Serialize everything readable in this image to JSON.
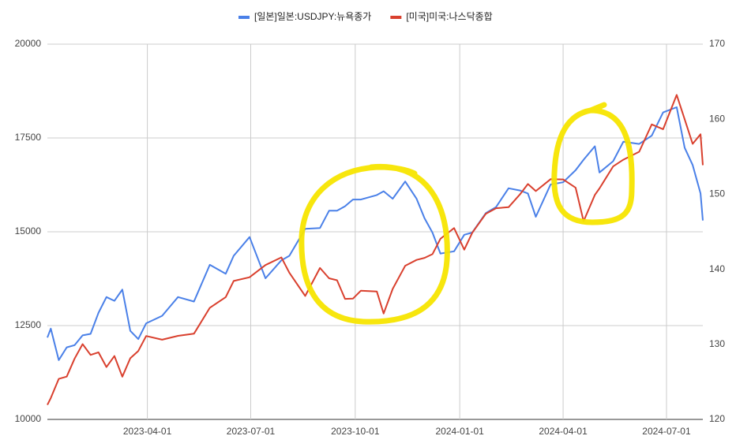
{
  "chart_data": {
    "type": "line",
    "x": [
      "2023-01-03",
      "2023-01-06",
      "2023-01-13",
      "2023-01-20",
      "2023-01-27",
      "2023-02-03",
      "2023-02-10",
      "2023-02-17",
      "2023-02-24",
      "2023-03-03",
      "2023-03-10",
      "2023-03-17",
      "2023-03-24",
      "2023-03-31",
      "2023-04-14",
      "2023-04-28",
      "2023-05-12",
      "2023-05-26",
      "2023-06-09",
      "2023-06-16",
      "2023-06-30",
      "2023-07-14",
      "2023-07-28",
      "2023-08-04",
      "2023-08-18",
      "2023-08-31",
      "2023-09-08",
      "2023-09-15",
      "2023-09-22",
      "2023-09-29",
      "2023-10-06",
      "2023-10-20",
      "2023-10-26",
      "2023-11-03",
      "2023-11-14",
      "2023-11-24",
      "2023-12-01",
      "2023-12-08",
      "2023-12-15",
      "2023-12-27",
      "2024-01-05",
      "2024-01-12",
      "2024-01-24",
      "2024-02-02",
      "2024-02-13",
      "2024-02-23",
      "2024-03-01",
      "2024-03-08",
      "2024-03-21",
      "2024-04-01",
      "2024-04-12",
      "2024-04-19",
      "2024-04-29",
      "2024-05-03",
      "2024-05-15",
      "2024-05-24",
      "2024-06-07",
      "2024-06-18",
      "2024-06-28",
      "2024-07-10",
      "2024-07-17",
      "2024-07-24",
      "2024-07-31",
      "2024-08-02"
    ],
    "series": [
      {
        "name": "[일본]일본:USDJPY:뉴욕종가",
        "color": "#4a80e8",
        "axis": "y2",
        "values": [
          130.9,
          132.1,
          127.9,
          129.6,
          129.9,
          131.2,
          131.4,
          134.2,
          136.3,
          135.8,
          137.3,
          131.8,
          130.7,
          132.8,
          133.8,
          136.3,
          135.7,
          140.6,
          139.4,
          141.8,
          144.3,
          138.8,
          141.2,
          141.8,
          145.4,
          145.5,
          147.8,
          147.8,
          148.4,
          149.3,
          149.3,
          149.9,
          150.4,
          149.4,
          151.7,
          149.4,
          146.8,
          144.9,
          142.1,
          142.4,
          144.6,
          144.9,
          147.5,
          148.3,
          150.8,
          150.5,
          150.1,
          147.0,
          151.3,
          151.6,
          153.2,
          154.6,
          156.4,
          152.9,
          154.4,
          157.0,
          156.7,
          157.8,
          160.9,
          161.6,
          156.2,
          153.9,
          150.1,
          146.5
        ]
      },
      {
        "name": "[미국]미국:나스닥종합",
        "color": "#d9402e",
        "values": [
          10386,
          10569,
          11079,
          11140,
          11621,
          12007,
          11718,
          11787,
          11395,
          11689,
          11138,
          11631,
          11823,
          12222,
          12123,
          12227,
          12284,
          12975,
          13259,
          13689,
          13787,
          14113,
          14317,
          13909,
          13290,
          14035,
          13761,
          13708,
          13212,
          13219,
          13431,
          13407,
          12821,
          13478,
          14094,
          14250,
          14305,
          14403,
          14813,
          15099,
          14524,
          14972,
          15481,
          15628,
          15655,
          15996,
          16274,
          16085,
          16401,
          16396,
          16175,
          15282,
          15983,
          16156,
          16742,
          16920,
          17133,
          17862,
          17733,
          18647,
          17997,
          17342,
          17599,
          16776
        ]
      }
    ],
    "xlim": [
      "2023-01-03",
      "2024-08-02"
    ],
    "xticks": [
      "2023-04-01",
      "2023-07-01",
      "2023-10-01",
      "2024-01-01",
      "2024-04-01",
      "2024-07-01"
    ],
    "ylim": [
      10000,
      20000
    ],
    "yticks": [
      10000,
      12500,
      15000,
      17500,
      20000
    ],
    "y2lim": [
      120,
      170
    ],
    "y2ticks": [
      120,
      130,
      140,
      150,
      160,
      170
    ],
    "grid": true,
    "legend": "top"
  }
}
